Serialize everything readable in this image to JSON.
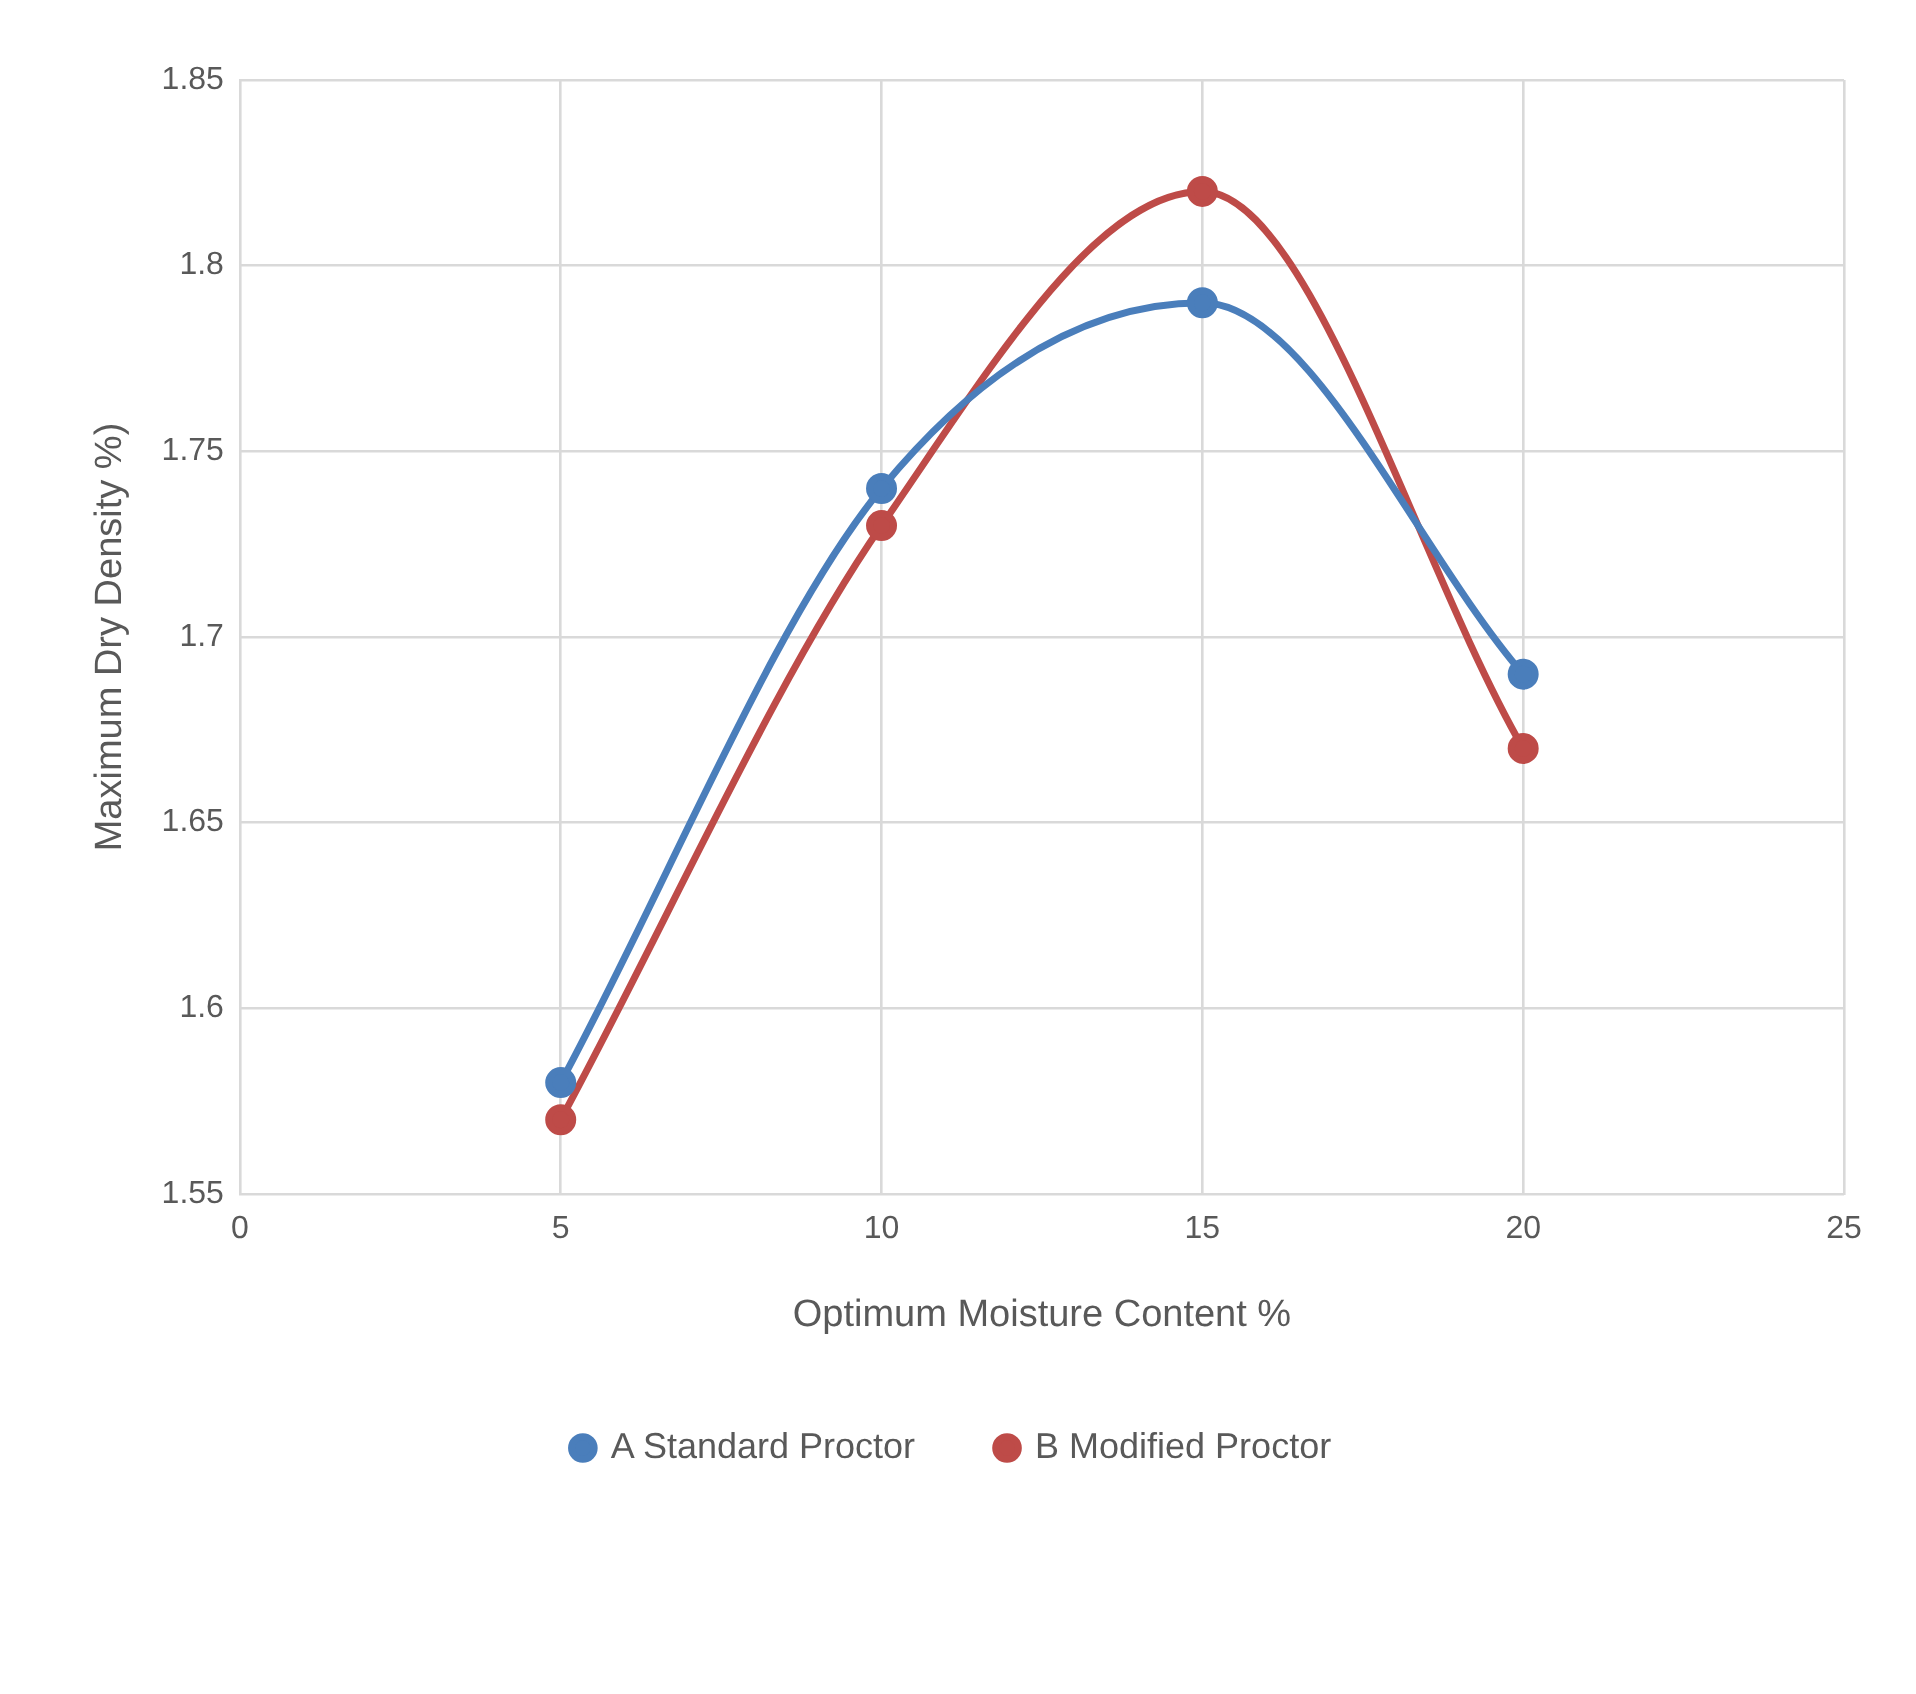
{
  "chart_data": {
    "type": "line",
    "xlabel": "Optimum Moisture Content %",
    "ylabel": "Maximum Dry Density %)",
    "x": [
      5,
      10,
      15,
      20
    ],
    "series": [
      {
        "name": "A Standard Proctor",
        "color": "#4a7ebb",
        "values": [
          1.58,
          1.74,
          1.79,
          1.69
        ]
      },
      {
        "name": "B Modified Proctor",
        "color": "#be4b48",
        "values": [
          1.57,
          1.73,
          1.82,
          1.67
        ]
      }
    ],
    "xlim": [
      0,
      25
    ],
    "xticks": [
      0,
      5,
      10,
      15,
      20,
      25
    ],
    "ylim": [
      1.55,
      1.85
    ],
    "yticks": [
      1.55,
      1.6,
      1.65,
      1.7,
      1.75,
      1.8,
      1.85
    ],
    "grid": true,
    "legend": "bottom",
    "marker": "circle",
    "line_style": "solid"
  }
}
